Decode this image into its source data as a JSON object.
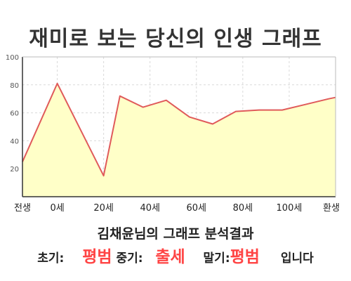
{
  "title": "재미로 보는 당신의 인생 그래프",
  "chart_data": {
    "type": "area",
    "x": [
      "전생",
      "0세",
      "20세",
      "40세",
      "60세",
      "80세",
      "100세",
      "환생"
    ],
    "x_positions": [
      -15,
      0,
      20,
      40,
      60,
      80,
      100,
      120
    ],
    "points": [
      {
        "x": -15,
        "y": 25
      },
      {
        "x": 0,
        "y": 81
      },
      {
        "x": 20,
        "y": 15
      },
      {
        "x": 27,
        "y": 72
      },
      {
        "x": 37,
        "y": 64
      },
      {
        "x": 47,
        "y": 69
      },
      {
        "x": 57,
        "y": 57
      },
      {
        "x": 67,
        "y": 52
      },
      {
        "x": 77,
        "y": 61
      },
      {
        "x": 87,
        "y": 62
      },
      {
        "x": 97,
        "y": 62
      },
      {
        "x": 107,
        "y": 66
      },
      {
        "x": 117,
        "y": 70
      },
      {
        "x": 120,
        "y": 71
      }
    ],
    "y_ticks": [
      20,
      40,
      60,
      80,
      100
    ],
    "ylim": [
      0,
      100
    ],
    "xlim": [
      -15,
      120
    ],
    "grid": true,
    "colors": {
      "line": "#e05a5a",
      "fill": "#ffffc8",
      "grid": "#d9d9d9"
    }
  },
  "summary": {
    "heading": "김채윤님의 그래프 분석결과",
    "early_label": "초기:",
    "early_value": "평범",
    "middle_label": "중기:",
    "middle_value": "출세",
    "late_label": "말기:",
    "late_value": "평범",
    "ending": "입니다"
  }
}
